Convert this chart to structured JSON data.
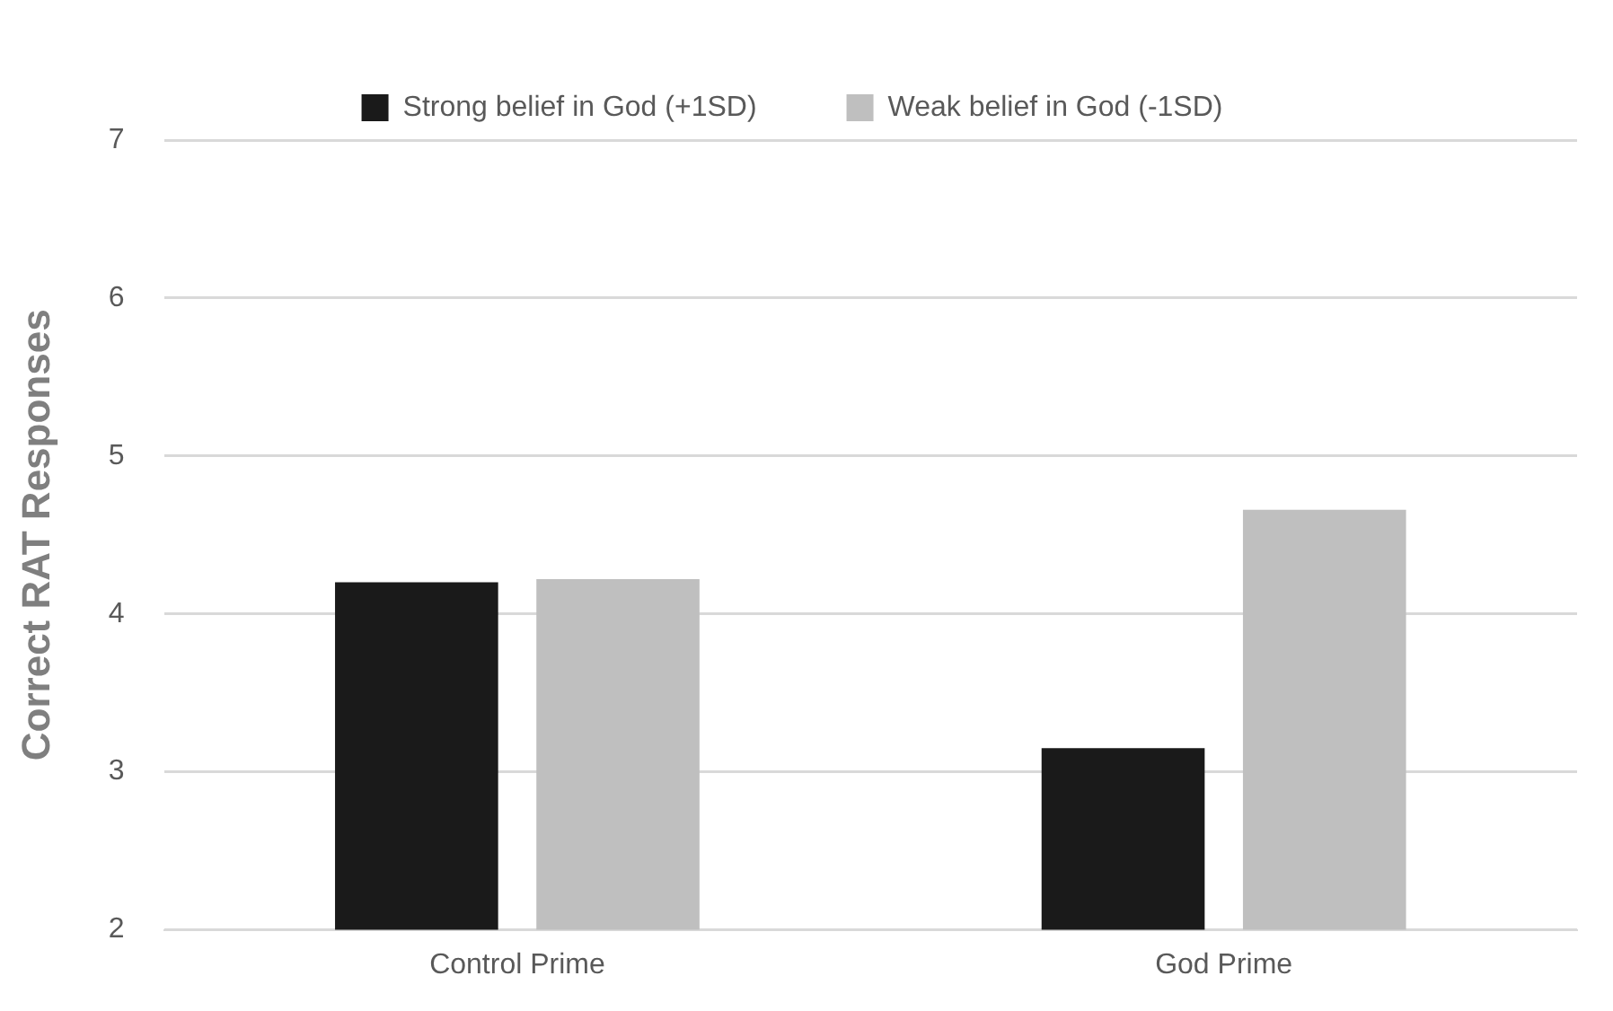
{
  "chart_data": {
    "type": "bar",
    "ylabel": "Correct RAT Responses",
    "categories": [
      "Control Prime",
      "God Prime"
    ],
    "series": [
      {
        "name": "Strong belief in God (+1SD)",
        "color": "#1a1a1a",
        "values": [
          4.2,
          3.15
        ]
      },
      {
        "name": "Weak belief in God (-1SD)",
        "color": "#bfbfbf",
        "values": [
          4.22,
          4.66
        ]
      }
    ],
    "ylim": [
      2,
      7
    ],
    "yticks": [
      2,
      3,
      4,
      5,
      6,
      7
    ],
    "grid": "y",
    "legend": "top"
  }
}
